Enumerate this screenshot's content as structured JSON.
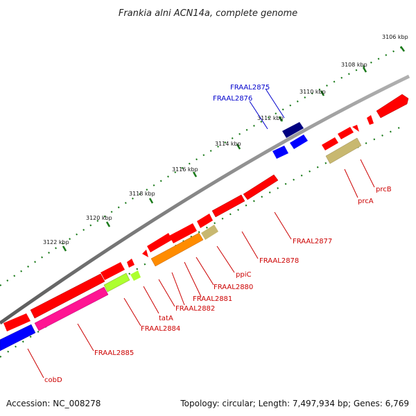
{
  "title": "Frankia alni ACN14a, complete genome",
  "footer": {
    "accession": "Accession: NC_008278",
    "summary": "Topology: circular; Length: 7,497,934 bp; Genes: 6,769"
  },
  "ticks": [
    "3106 kbp",
    "3108 kbp",
    "3110 kbp",
    "3112 kbp",
    "3114 kbp",
    "3116 kbp",
    "3118 kbp",
    "3120 kbp",
    "3122 kbp"
  ],
  "genes": [
    {
      "id": "FRAAL2875",
      "strand": "forward",
      "color": "#000080"
    },
    {
      "id": "FRAAL2876",
      "strand": "forward",
      "color": "#0000ff"
    },
    {
      "id": "prcB",
      "strand": "reverse",
      "color": "#ff0000"
    },
    {
      "id": "prcA",
      "strand": "reverse",
      "color": "#c8b870"
    },
    {
      "id": "FRAAL2877",
      "strand": "reverse",
      "color": "#ff0000"
    },
    {
      "id": "FRAAL2878",
      "strand": "reverse",
      "color": "#ff0000"
    },
    {
      "id": "ppiC",
      "strand": "reverse",
      "color": "#c8b870"
    },
    {
      "id": "FRAAL2880",
      "strand": "reverse",
      "color": "#ff8c00"
    },
    {
      "id": "FRAAL2881",
      "strand": "reverse",
      "color": "#ff0000"
    },
    {
      "id": "FRAAL2882",
      "strand": "reverse",
      "color": "#ff0000"
    },
    {
      "id": "tatA",
      "strand": "reverse",
      "color": "#adff2f"
    },
    {
      "id": "FRAAL2884",
      "strand": "reverse",
      "color": "#adff2f"
    },
    {
      "id": "FRAAL2885",
      "strand": "reverse",
      "color": "#ff1493"
    },
    {
      "id": "cobD",
      "strand": "reverse",
      "color": "#0000ff"
    }
  ]
}
